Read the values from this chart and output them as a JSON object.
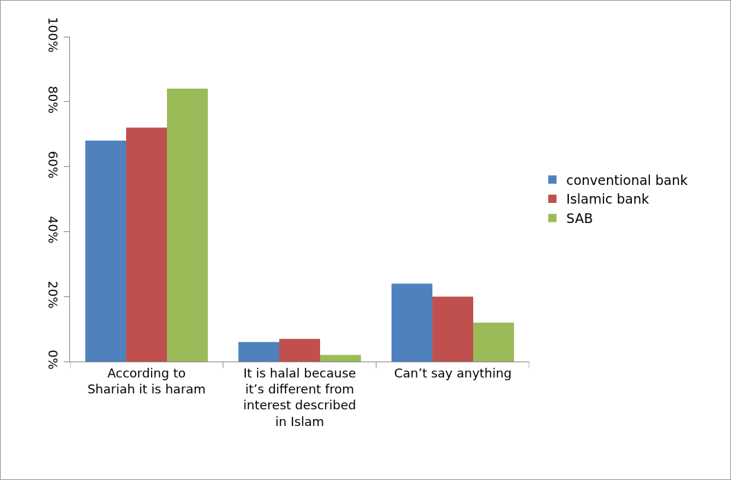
{
  "chart_data": {
    "type": "bar",
    "categories": [
      "According to Shariah it is haram",
      "It is halal because it’s different from interest described in Islam",
      "Can’t say anything"
    ],
    "series": [
      {
        "name": "conventional bank",
        "color": "#4f81bd",
        "values": [
          68,
          6,
          24
        ]
      },
      {
        "name": "Islamic bank",
        "color": "#c0504d",
        "values": [
          72,
          7,
          20
        ]
      },
      {
        "name": "SAB",
        "color": "#9bbb59",
        "values": [
          84,
          2,
          12
        ]
      }
    ],
    "ylim": [
      0,
      100
    ],
    "yticks": [
      {
        "value": 0,
        "label": "0%"
      },
      {
        "value": 20,
        "label": "20%"
      },
      {
        "value": 40,
        "label": "40%"
      },
      {
        "value": 60,
        "label": "60%"
      },
      {
        "value": 80,
        "label": "80%"
      },
      {
        "value": 100,
        "label": "100%"
      }
    ],
    "grid": false,
    "legend": "right"
  }
}
